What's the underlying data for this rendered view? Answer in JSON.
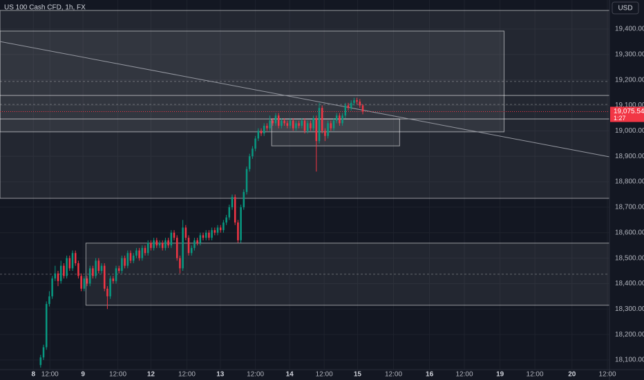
{
  "chart_data": {
    "type": "candlestick",
    "title": "US 100 Cash CFD, 1h, FX",
    "currency": "USD",
    "xlim": [
      0,
      210
    ],
    "ylim": [
      18062,
      19514
    ],
    "xticks": [
      {
        "value": 11.5,
        "label": "8"
      },
      {
        "value": 17.2,
        "label": "12:00"
      },
      {
        "value": 28.6,
        "label": "9"
      },
      {
        "value": 40.6,
        "label": "12:00"
      },
      {
        "value": 52,
        "label": "12"
      },
      {
        "value": 64.4,
        "label": "12:00"
      },
      {
        "value": 75.9,
        "label": "13"
      },
      {
        "value": 88,
        "label": "12:00"
      },
      {
        "value": 99.8,
        "label": "14"
      },
      {
        "value": 111.7,
        "label": "12:00"
      },
      {
        "value": 123.2,
        "label": "15"
      },
      {
        "value": 135.6,
        "label": "12:00"
      },
      {
        "value": 148,
        "label": "16"
      },
      {
        "value": 160,
        "label": "12:00"
      },
      {
        "value": 172.3,
        "label": "19"
      },
      {
        "value": 184.3,
        "label": "12:00"
      },
      {
        "value": 197.1,
        "label": "20"
      },
      {
        "value": 209.3,
        "label": "12:00"
      }
    ],
    "yticks": [
      {
        "value": 18100,
        "label": "18,100.00"
      },
      {
        "value": 18200,
        "label": "18,200.00"
      },
      {
        "value": 18300,
        "label": "18,300.00"
      },
      {
        "value": 18400,
        "label": "18,400.00"
      },
      {
        "value": 18500,
        "label": "18,500.00"
      },
      {
        "value": 18600,
        "label": "18,600.00"
      },
      {
        "value": 18700,
        "label": "18,700.00"
      },
      {
        "value": 18800,
        "label": "18,800.00"
      },
      {
        "value": 18900,
        "label": "18,900.00"
      },
      {
        "value": 19000,
        "label": "19,000.00"
      },
      {
        "value": 19100,
        "label": "19,100.00"
      },
      {
        "value": 19200,
        "label": "19,200.00"
      },
      {
        "value": 19300,
        "label": "19,300.00"
      },
      {
        "value": 19400,
        "label": "19,400.00"
      }
    ],
    "up_color": "#089981",
    "down_color": "#f23645",
    "last_price": {
      "value": 19075.54,
      "label": "19,075.54"
    },
    "countdown": "1:27",
    "candles": {
      "x": [
        14,
        15,
        16,
        17,
        18,
        19,
        20,
        21,
        22,
        23,
        24,
        25,
        26,
        27,
        28,
        29,
        30,
        31,
        32,
        33,
        34,
        35,
        36,
        37,
        38,
        39,
        40,
        41,
        42,
        43,
        44,
        45,
        46,
        47,
        48,
        49,
        50,
        51,
        52,
        53,
        54,
        55,
        56,
        57,
        58,
        59,
        60,
        61,
        62,
        63,
        64,
        65,
        66,
        67,
        68,
        69,
        70,
        71,
        72,
        73,
        74,
        75,
        76,
        77,
        78,
        79,
        80,
        81,
        82,
        83,
        84,
        85,
        86,
        87,
        88,
        89,
        90,
        91,
        92,
        93,
        94,
        95,
        96,
        97,
        98,
        99,
        100,
        101,
        102,
        103,
        104,
        105,
        106,
        107,
        108,
        109,
        110,
        111,
        112,
        113,
        114,
        115,
        116,
        117,
        118,
        119,
        120,
        121,
        122,
        123,
        124,
        125
      ],
      "open": [
        18080,
        18110,
        18150,
        18320,
        18350,
        18420,
        18440,
        18410,
        18470,
        18430,
        18500,
        18460,
        18520,
        18480,
        18430,
        18380,
        18420,
        18400,
        18460,
        18430,
        18490,
        18450,
        18470,
        18380,
        18350,
        18420,
        18410,
        18460,
        18450,
        18500,
        18470,
        18520,
        18490,
        18510,
        18530,
        18500,
        18540,
        18520,
        18560,
        18540,
        18570,
        18550,
        18560,
        18540,
        18570,
        18550,
        18600,
        18580,
        18500,
        18460,
        18620,
        18580,
        18520,
        18540,
        18570,
        18560,
        18590,
        18580,
        18600,
        18580,
        18610,
        18600,
        18620,
        18610,
        18640,
        18660,
        18700,
        18740,
        18640,
        18570,
        18700,
        18760,
        18850,
        18900,
        18930,
        18970,
        19000,
        18990,
        19020,
        19010,
        19040,
        19030,
        19060,
        19020,
        19040,
        19030,
        19020,
        19040,
        19010,
        19030,
        19020,
        19040,
        19000,
        19030,
        19010,
        19050,
        18960,
        19090,
        19000,
        18980,
        19030,
        19010,
        19040,
        19060,
        19030,
        19060,
        19100,
        19090,
        19110,
        19120,
        19115,
        19100
      ],
      "high": [
        18120,
        18160,
        18330,
        18370,
        18430,
        18470,
        18450,
        18490,
        18480,
        18510,
        18510,
        18530,
        18530,
        18490,
        18440,
        18430,
        18430,
        18470,
        18470,
        18500,
        18500,
        18480,
        18480,
        18390,
        18430,
        18430,
        18470,
        18470,
        18510,
        18510,
        18530,
        18530,
        18520,
        18540,
        18540,
        18550,
        18550,
        18570,
        18570,
        18580,
        18580,
        18570,
        18570,
        18580,
        18580,
        18610,
        18610,
        18590,
        18510,
        18650,
        18630,
        18590,
        18550,
        18580,
        18580,
        18600,
        18600,
        18610,
        18610,
        18620,
        18620,
        18630,
        18630,
        18650,
        18670,
        18710,
        18750,
        18750,
        18650,
        18710,
        18770,
        18860,
        18910,
        18940,
        18980,
        19010,
        19010,
        19030,
        19030,
        19060,
        19050,
        19070,
        19070,
        19050,
        19050,
        19040,
        19050,
        19050,
        19040,
        19040,
        19050,
        19050,
        19040,
        19040,
        19060,
        19060,
        19110,
        19100,
        19010,
        19040,
        19040,
        19050,
        19070,
        19070,
        19070,
        19110,
        19110,
        19120,
        19130,
        19130,
        19125,
        19105
      ],
      "low": [
        18070,
        18100,
        18140,
        18310,
        18340,
        18410,
        18390,
        18400,
        18420,
        18420,
        18450,
        18450,
        18470,
        18420,
        18370,
        18370,
        18390,
        18390,
        18420,
        18420,
        18440,
        18440,
        18370,
        18300,
        18340,
        18400,
        18400,
        18440,
        18440,
        18460,
        18460,
        18480,
        18480,
        18500,
        18490,
        18490,
        18510,
        18510,
        18530,
        18530,
        18540,
        18540,
        18530,
        18530,
        18540,
        18540,
        18570,
        18490,
        18440,
        18450,
        18570,
        18510,
        18510,
        18530,
        18550,
        18550,
        18570,
        18570,
        18570,
        18570,
        18590,
        18590,
        18600,
        18600,
        18630,
        18650,
        18690,
        18630,
        18560,
        18560,
        18690,
        18750,
        18840,
        18890,
        18920,
        18960,
        18980,
        18980,
        19000,
        19000,
        19020,
        19020,
        19010,
        19010,
        19020,
        19010,
        19010,
        19000,
        19000,
        19010,
        19010,
        18990,
        18990,
        19000,
        19000,
        18840,
        18950,
        18990,
        18960,
        18970,
        19000,
        19000,
        19030,
        19020,
        19020,
        19050,
        19080,
        19080,
        19100,
        19105,
        19090,
        19065
      ],
      "close": [
        18110,
        18150,
        18320,
        18350,
        18420,
        18440,
        18410,
        18470,
        18430,
        18500,
        18460,
        18520,
        18480,
        18430,
        18380,
        18420,
        18400,
        18460,
        18430,
        18490,
        18450,
        18470,
        18380,
        18350,
        18420,
        18410,
        18460,
        18450,
        18500,
        18470,
        18520,
        18490,
        18510,
        18530,
        18500,
        18540,
        18520,
        18560,
        18540,
        18570,
        18550,
        18560,
        18540,
        18570,
        18550,
        18600,
        18580,
        18500,
        18460,
        18620,
        18580,
        18520,
        18540,
        18570,
        18560,
        18590,
        18580,
        18600,
        18580,
        18610,
        18600,
        18620,
        18610,
        18640,
        18660,
        18700,
        18740,
        18640,
        18570,
        18700,
        18760,
        18850,
        18900,
        18930,
        18970,
        19000,
        18990,
        19020,
        19010,
        19040,
        19030,
        19060,
        19020,
        19040,
        19030,
        19020,
        19040,
        19010,
        19030,
        19020,
        19040,
        19000,
        19030,
        19010,
        19050,
        18960,
        19090,
        19000,
        18980,
        19030,
        19010,
        19040,
        19060,
        19030,
        19060,
        19100,
        19090,
        19110,
        19120,
        19115,
        19100,
        19076
      ]
    },
    "zones": [
      {
        "x0": 0,
        "x1": 210,
        "y0": 18735,
        "y1": 19473
      },
      {
        "x0": 0,
        "x1": 173.7,
        "y0": 18996,
        "y1": 19392
      },
      {
        "x0": 29.6,
        "x1": 210,
        "y0": 18315,
        "y1": 18559
      },
      {
        "x0": 93.6,
        "x1": 137.7,
        "y0": 18941,
        "y1": 19047
      }
    ],
    "levels": [
      19139,
      19047
    ],
    "dotted_levels": [
      19194,
      19104,
      18437
    ],
    "trendline": {
      "x": [
        0,
        210
      ],
      "y": [
        19351,
        18898
      ]
    }
  }
}
